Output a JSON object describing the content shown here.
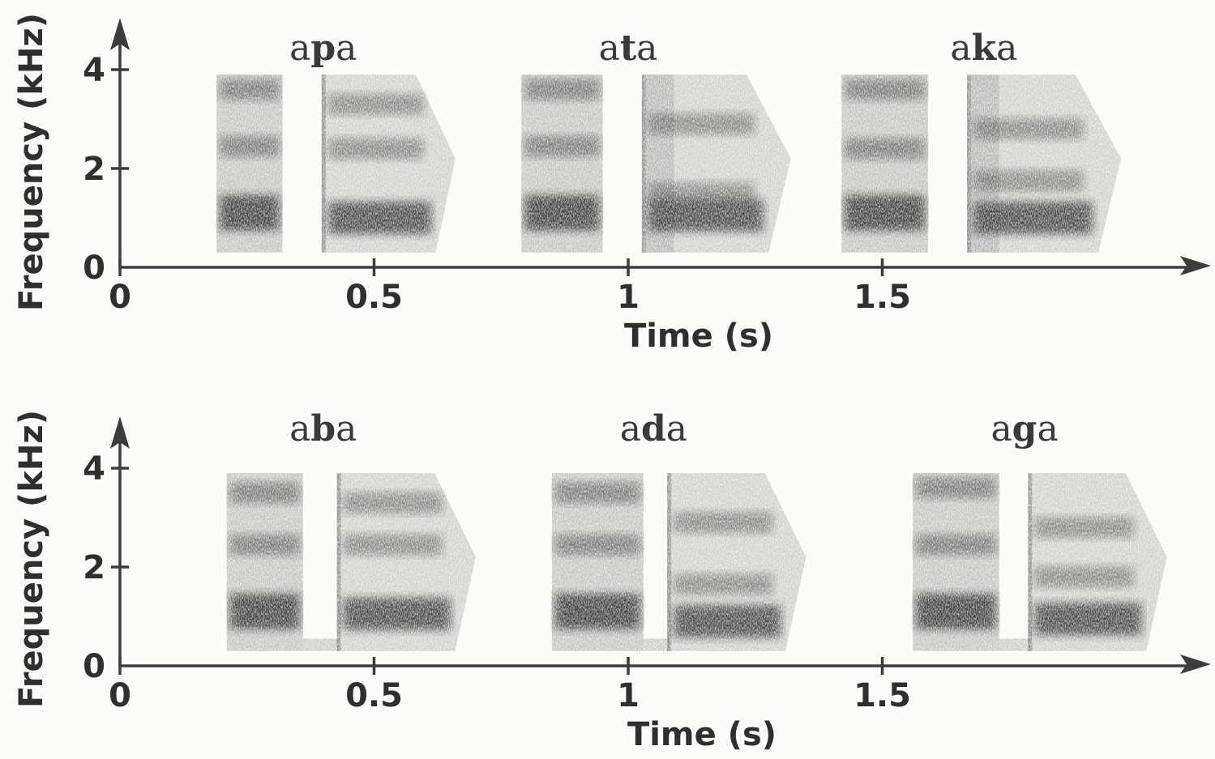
{
  "chart_data": [
    {
      "type": "heatmap",
      "xlabel": "Time (s)",
      "ylabel": "Frequency (kHz)",
      "xlim": [
        0,
        2.13
      ],
      "ylim": [
        0,
        5
      ],
      "x_ticks": [
        {
          "v": 0,
          "label": "0"
        },
        {
          "v": 0.5,
          "label": "0.5"
        },
        {
          "v": 1,
          "label": "1"
        },
        {
          "v": 1.5,
          "label": "1.5"
        }
      ],
      "y_ticks": [
        {
          "v": 0,
          "label": "0"
        },
        {
          "v": 2,
          "label": "2"
        },
        {
          "v": 4,
          "label": "4"
        }
      ],
      "segments": [
        {
          "label_pre": "a",
          "consonant": "p",
          "label_post": "a",
          "label_center": 0.4,
          "vowel1": [
            0.19,
            0.32
          ],
          "burst": 0.4,
          "vowel2": [
            0.4,
            0.66
          ],
          "formants1": [
            1.1,
            2.45,
            3.6
          ],
          "formants2": [
            1.0,
            2.4,
            3.3
          ],
          "aspiration": 0.0,
          "voice_bar": false
        },
        {
          "label_pre": "a",
          "consonant": "t",
          "label_center": 1.0,
          "label_post": "a",
          "vowel1": [
            0.79,
            0.95
          ],
          "burst": 1.03,
          "vowel2": [
            1.03,
            1.32
          ],
          "formants1": [
            1.1,
            2.45,
            3.6
          ],
          "formants2": [
            1.05,
            1.5,
            2.9
          ],
          "aspiration": 0.06,
          "voice_bar": false
        },
        {
          "label_pre": "a",
          "consonant": "k",
          "label_post": "a",
          "label_center": 1.7,
          "vowel1": [
            1.42,
            1.59
          ],
          "burst": 1.67,
          "vowel2": [
            1.67,
            1.97
          ],
          "formants1": [
            1.1,
            2.4,
            3.6
          ],
          "formants2": [
            1.0,
            1.75,
            2.8
          ],
          "aspiration": 0.06,
          "voice_bar": false
        }
      ]
    },
    {
      "type": "heatmap",
      "xlabel": "Time (s)",
      "ylabel": "Frequency (kHz)",
      "xlim": [
        0,
        2.13
      ],
      "ylim": [
        0,
        5
      ],
      "x_ticks": [
        {
          "v": 0,
          "label": "0"
        },
        {
          "v": 0.5,
          "label": "0.5"
        },
        {
          "v": 1,
          "label": "1"
        },
        {
          "v": 1.5,
          "label": "1.5"
        }
      ],
      "y_ticks": [
        {
          "v": 0,
          "label": "0"
        },
        {
          "v": 2,
          "label": "2"
        },
        {
          "v": 4,
          "label": "4"
        }
      ],
      "segments": [
        {
          "label_pre": "a",
          "consonant": "b",
          "label_post": "a",
          "label_center": 0.4,
          "vowel1": [
            0.21,
            0.36
          ],
          "burst": 0.43,
          "vowel2": [
            0.43,
            0.7
          ],
          "formants1": [
            1.1,
            2.45,
            3.5
          ],
          "formants2": [
            1.05,
            2.45,
            3.3
          ],
          "aspiration": 0.0,
          "voice_bar": true
        },
        {
          "label_pre": "a",
          "consonant": "d",
          "label_post": "a",
          "label_center": 1.05,
          "vowel1": [
            0.85,
            1.03
          ],
          "burst": 1.08,
          "vowel2": [
            1.08,
            1.35
          ],
          "formants1": [
            1.1,
            2.45,
            3.5
          ],
          "formants2": [
            0.9,
            1.65,
            2.9
          ],
          "aspiration": 0.0,
          "voice_bar": true
        },
        {
          "label_pre": "a",
          "consonant": "g",
          "label_post": "a",
          "label_center": 1.78,
          "vowel1": [
            1.56,
            1.73
          ],
          "burst": 1.79,
          "vowel2": [
            1.79,
            2.06
          ],
          "formants1": [
            1.1,
            2.45,
            3.6
          ],
          "formants2": [
            0.95,
            1.8,
            2.8
          ],
          "aspiration": 0.0,
          "voice_bar": true
        }
      ]
    }
  ],
  "colors": {
    "ink": "#3c3c3c",
    "paper": "#fbfbf9"
  }
}
